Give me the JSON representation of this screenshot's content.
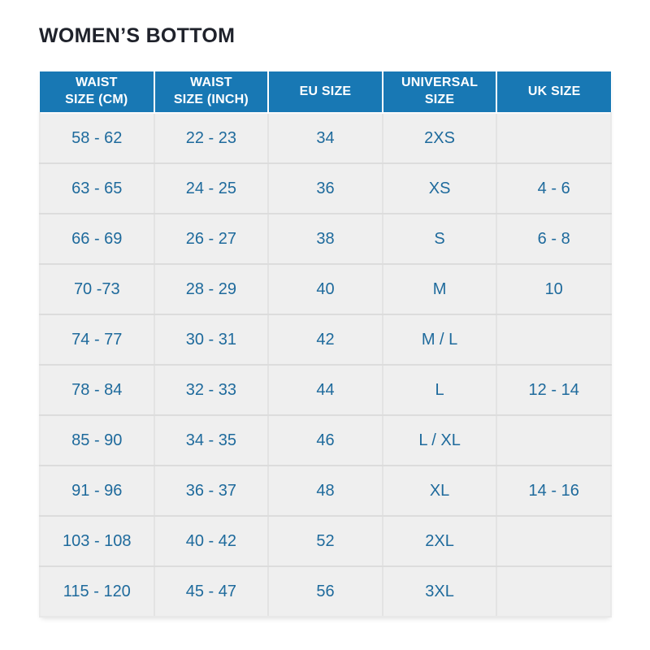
{
  "page": {
    "title": "WOMEN’S BOTTOM"
  },
  "colors": {
    "header_bg": "#1878b4",
    "header_text": "#ffffff",
    "cell_bg": "#efefef",
    "cell_text": "#1e6a9c",
    "title_text": "#1f222b",
    "divider": "#dcdcdc"
  },
  "chart_data": {
    "type": "table",
    "title": "WOMEN’S BOTTOM",
    "columns": [
      "WAIST\nSIZE (CM)",
      "WAIST\nSIZE (INCH)",
      "EU SIZE",
      "UNIVERSAL\nSIZE",
      "UK SIZE"
    ],
    "rows": [
      [
        "58 - 62",
        "22 - 23",
        "34",
        "2XS",
        ""
      ],
      [
        "63 - 65",
        "24 - 25",
        "36",
        "XS",
        "4 - 6"
      ],
      [
        "66 - 69",
        "26 - 27",
        "38",
        "S",
        "6 - 8"
      ],
      [
        "70 -73",
        "28 - 29",
        "40",
        "M",
        "10"
      ],
      [
        "74 - 77",
        "30 - 31",
        "42",
        "M / L",
        ""
      ],
      [
        "78 - 84",
        "32 - 33",
        "44",
        "L",
        "12 - 14"
      ],
      [
        "85 - 90",
        "34 - 35",
        "46",
        "L / XL",
        ""
      ],
      [
        "91 - 96",
        "36 - 37",
        "48",
        "XL",
        "14 - 16"
      ],
      [
        "103 - 108",
        "40 - 42",
        "52",
        "2XL",
        ""
      ],
      [
        "115 - 120",
        "45 - 47",
        "56",
        "3XL",
        ""
      ]
    ]
  }
}
